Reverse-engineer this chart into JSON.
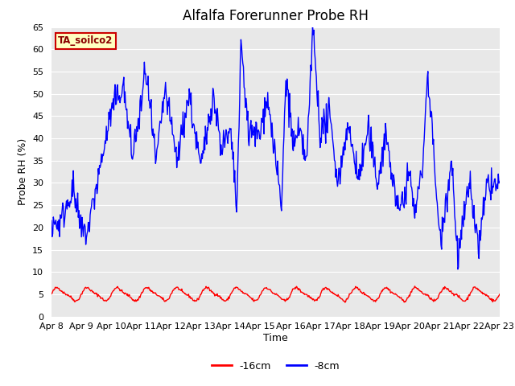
{
  "title": "Alfalfa Forerunner Probe RH",
  "ylabel": "Probe RH (%)",
  "xlabel": "Time",
  "ylim": [
    0,
    65
  ],
  "yticks": [
    0,
    5,
    10,
    15,
    20,
    25,
    30,
    35,
    40,
    45,
    50,
    55,
    60,
    65
  ],
  "x_tick_labels": [
    "Apr 8",
    "Apr 9",
    "Apr 10",
    "Apr 11",
    "Apr 12",
    "Apr 13",
    "Apr 14",
    "Apr 15",
    "Apr 16",
    "Apr 17",
    "Apr 18",
    "Apr 19",
    "Apr 20",
    "Apr 21",
    "Apr 22",
    "Apr 23"
  ],
  "line_red_color": "#ff0000",
  "line_blue_color": "#0000ff",
  "line_red_label": "-16cm",
  "line_blue_label": "-8cm",
  "line_width": 1.0,
  "plot_bg_color": "#e8e8e8",
  "grid_color": "#ffffff",
  "label_box_text": "TA_soilco2",
  "label_box_bg": "#ffffc0",
  "label_box_edge": "#cc0000",
  "title_fontsize": 12,
  "axis_label_fontsize": 9,
  "tick_fontsize": 8
}
